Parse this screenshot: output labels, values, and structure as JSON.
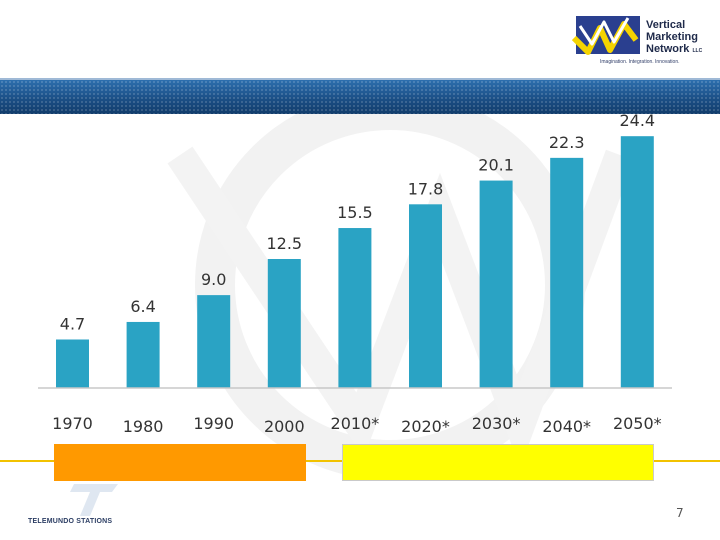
{
  "header": {
    "logo": {
      "line1": "Vertical",
      "line2": "Marketing",
      "line3": "Network",
      "suffix": "LLC",
      "tagline": "Imagination. Integration. Innovation."
    }
  },
  "chart_data": {
    "type": "bar",
    "categories": [
      "1970",
      "1980",
      "1990",
      "2000",
      "2010*",
      "2020*",
      "2030*",
      "2040*",
      "2050*"
    ],
    "values": [
      4.7,
      6.4,
      9.0,
      12.5,
      15.5,
      17.8,
      20.1,
      22.3,
      24.4
    ],
    "value_labels": [
      "4.7",
      "6.4",
      "9.0",
      "12.5",
      "15.5",
      "17.8",
      "20.1",
      "22.3",
      "24.4"
    ],
    "title": "",
    "xlabel": "",
    "ylabel": "",
    "ylim": [
      0,
      25
    ],
    "grid": false,
    "bar_color": "#2aa3c4"
  },
  "footer": {
    "brand": "TELEMUNDO STATIONS",
    "page_number": "7",
    "historical_box_color": "#ff9900",
    "projected_box_color": "#ffff00",
    "accent_line_color": "#f2c200"
  }
}
